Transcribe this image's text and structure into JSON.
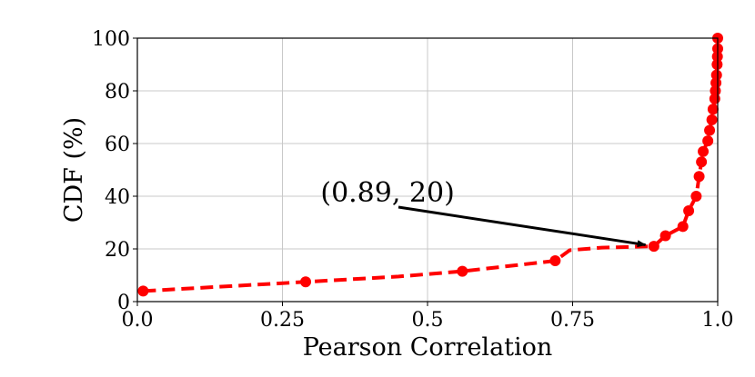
{
  "chart_data": {
    "type": "line",
    "title": "",
    "xlabel": "Pearson Correlation",
    "ylabel": "CDF (%)",
    "xlim": [
      0.0,
      1.0
    ],
    "ylim": [
      0,
      100
    ],
    "grid": true,
    "x_ticks": [
      0.0,
      0.25,
      0.5,
      0.75,
      1.0
    ],
    "x_tick_labels": [
      "0.0",
      "0.25",
      "0.5",
      "0.75",
      "1.0"
    ],
    "y_ticks": [
      0,
      20,
      40,
      60,
      80,
      100
    ],
    "y_tick_labels": [
      "0",
      "20",
      "40",
      "60",
      "80",
      "100"
    ],
    "series": [
      {
        "name": "CDF",
        "color": "#ff0000",
        "line_style": "dashed",
        "marker": "circle",
        "line": [
          [
            0.01,
            4
          ],
          [
            0.29,
            7.5
          ],
          [
            0.45,
            9.5
          ],
          [
            0.56,
            11.5
          ],
          [
            0.72,
            15.5
          ],
          [
            0.745,
            19.5
          ],
          [
            0.8,
            20.5
          ],
          [
            0.89,
            21
          ],
          [
            0.91,
            25
          ],
          [
            0.94,
            28.5
          ],
          [
            0.95,
            34.5
          ],
          [
            0.963,
            40
          ],
          [
            0.968,
            47.5
          ],
          [
            0.972,
            53
          ],
          [
            0.975,
            57
          ],
          [
            0.983,
            61
          ],
          [
            0.986,
            65
          ],
          [
            0.99,
            69
          ],
          [
            0.992,
            73
          ],
          [
            0.995,
            77
          ],
          [
            0.996,
            80
          ],
          [
            0.997,
            83
          ],
          [
            0.998,
            86
          ],
          [
            0.999,
            90
          ],
          [
            0.9995,
            93
          ],
          [
            1.0,
            96
          ],
          [
            1.0,
            100
          ]
        ],
        "markers": [
          [
            0.01,
            4
          ],
          [
            0.29,
            7.5
          ],
          [
            0.56,
            11.5
          ],
          [
            0.72,
            15.5
          ],
          [
            0.89,
            21
          ],
          [
            0.91,
            25
          ],
          [
            0.94,
            28.5
          ],
          [
            0.95,
            34.5
          ],
          [
            0.963,
            40
          ],
          [
            0.968,
            47.5
          ],
          [
            0.972,
            53
          ],
          [
            0.975,
            57
          ],
          [
            0.983,
            61
          ],
          [
            0.986,
            65
          ],
          [
            0.99,
            69
          ],
          [
            0.992,
            73
          ],
          [
            0.995,
            77
          ],
          [
            0.996,
            80
          ],
          [
            0.997,
            83
          ],
          [
            0.998,
            86
          ],
          [
            0.999,
            90
          ],
          [
            0.9995,
            93
          ],
          [
            1.0,
            96
          ],
          [
            1.0,
            100
          ]
        ]
      }
    ],
    "annotations": [
      {
        "text": "(0.89, 20)",
        "target": [
          0.885,
          20.5
        ],
        "text_anchor": [
          0.45,
          41
        ]
      }
    ]
  }
}
